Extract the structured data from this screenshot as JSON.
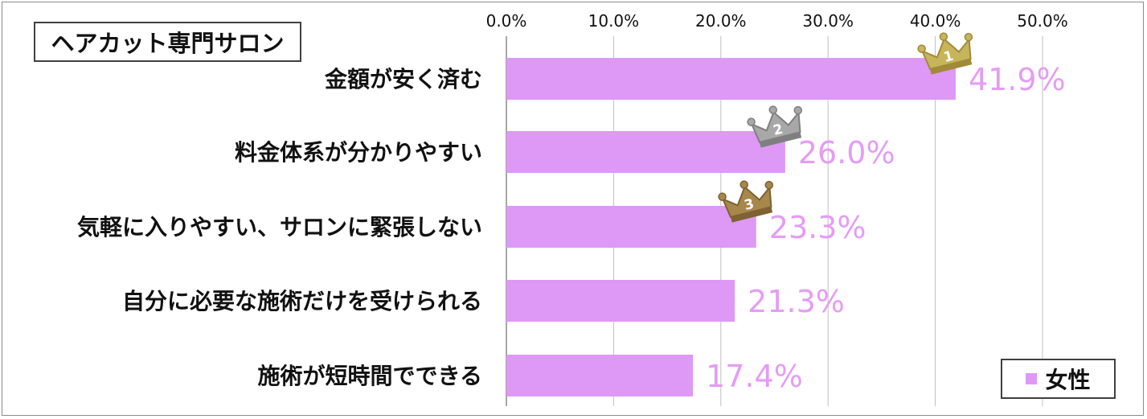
{
  "title": "ヘアカット専門サロン",
  "colors": {
    "bar": "#dd99f5",
    "label": "#e59cf5",
    "grid": "#bfbfbf",
    "axis": "#8c8c8c"
  },
  "legend": {
    "label": "女性"
  },
  "chart_data": {
    "type": "bar",
    "orientation": "horizontal",
    "title": "",
    "xlim": [
      0,
      50
    ],
    "ticks": [
      0,
      10,
      20,
      30,
      40,
      50
    ],
    "tick_labels": [
      "0.0%",
      "10.0%",
      "20.0%",
      "30.0%",
      "40.0%",
      "50.0%"
    ],
    "tick_position": "top",
    "grid": true,
    "legend_placement": "bottom-right",
    "categories": [
      "金額が安く済む",
      "料金体系が分かりやすい",
      "気軽に入りやすい、サロンに緊張しない",
      "自分に必要な施術だけを受けられる",
      "施術が短時間でできる"
    ],
    "series": [
      {
        "name": "女性",
        "values": [
          41.9,
          26.0,
          23.3,
          21.3,
          17.4
        ]
      }
    ],
    "value_labels": [
      "41.9%",
      "26.0%",
      "23.3%",
      "21.3%",
      "17.4%"
    ],
    "rank_badges": [
      {
        "rank": "1",
        "color": "#c8b45a",
        "dark": "#a08b3a",
        "bar_index": 0
      },
      {
        "rank": "2",
        "color": "#a8a8a8",
        "dark": "#7f7f7f",
        "bar_index": 1
      },
      {
        "rank": "3",
        "color": "#a8874a",
        "dark": "#7d6233",
        "bar_index": 2
      }
    ]
  }
}
